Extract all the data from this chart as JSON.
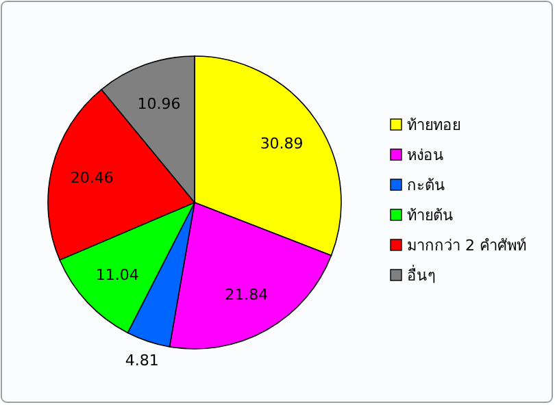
{
  "chart_data": {
    "type": "pie",
    "categories": [
      "ท้ายทอย",
      "หง่อน",
      "กะต้น",
      "ท้ายต้น",
      "มากกว่า 2 คำศัพท์",
      "อื่นๆ"
    ],
    "values": [
      30.89,
      21.84,
      4.81,
      11.04,
      20.46,
      10.96
    ],
    "colors": [
      "#ffff00",
      "#ff00ff",
      "#0066ff",
      "#00ff00",
      "#ff0000",
      "#808080"
    ],
    "data_labels": true,
    "legend": "right"
  }
}
